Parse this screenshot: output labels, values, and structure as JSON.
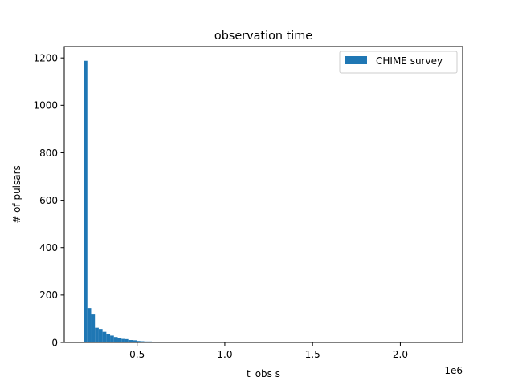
{
  "chart_data": {
    "type": "bar",
    "title": "observation time",
    "xlabel": "t_obs s",
    "ylabel": "# of pulsars",
    "x_offset_label": "1e6",
    "xlim": [
      85000,
      2355000
    ],
    "ylim": [
      0,
      1248
    ],
    "x_ticks": [
      500000,
      1000000,
      1500000,
      2000000
    ],
    "x_tick_labels": [
      "0.5",
      "1.0",
      "1.5",
      "2.0"
    ],
    "y_ticks": [
      0,
      200,
      400,
      600,
      800,
      1000,
      1200
    ],
    "y_tick_labels": [
      "0",
      "200",
      "400",
      "600",
      "800",
      "1000",
      "1200"
    ],
    "grid": false,
    "legend_position": "top-right",
    "series": [
      {
        "name": "CHIME survey",
        "color": "#1f77b4",
        "bin_start": 195000,
        "bin_width": 21600,
        "counts": [
          1188,
          145,
          118,
          62,
          57,
          45,
          35,
          29,
          23,
          20,
          15,
          14,
          10,
          9,
          6,
          5,
          4,
          4,
          3,
          3,
          2,
          2,
          1,
          1,
          1,
          0,
          3,
          2,
          1,
          1,
          1,
          1,
          1,
          0,
          0,
          0,
          0,
          1,
          0,
          0,
          0,
          0,
          0,
          0,
          0,
          0,
          0,
          0,
          0,
          0,
          0,
          0,
          0,
          0,
          0,
          0,
          0,
          0,
          0,
          0,
          0,
          0,
          0,
          0,
          0,
          0,
          0,
          0,
          0,
          0,
          0,
          0,
          0,
          0,
          0,
          0,
          0,
          0,
          0,
          0,
          0,
          0,
          0,
          0,
          0,
          0,
          0,
          0,
          0,
          0,
          0,
          0,
          0,
          0,
          0,
          0,
          0,
          0,
          0,
          1
        ]
      }
    ]
  }
}
